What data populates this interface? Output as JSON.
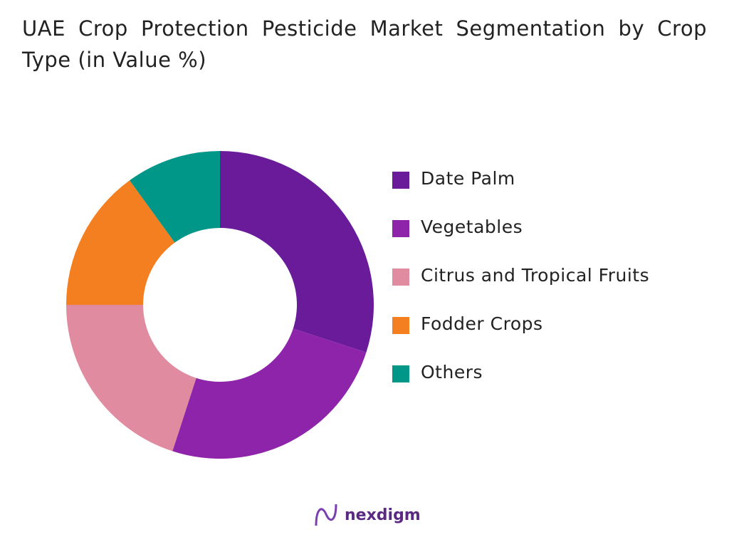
{
  "chart_data": {
    "type": "donut",
    "title": "UAE Crop Protection Pesticide Market Segmentation by Crop Type (in Value %)",
    "categories": [
      "Date Palm",
      "Vegetables",
      "Citrus and Tropical Fruits",
      "Fodder Crops",
      "Others"
    ],
    "values": [
      30,
      25,
      20,
      15,
      10
    ],
    "colors": [
      "#6a1b9a",
      "#8e24aa",
      "#e08ba0",
      "#f47f20",
      "#009688"
    ],
    "legend": "right"
  },
  "logo": "nexdigm"
}
